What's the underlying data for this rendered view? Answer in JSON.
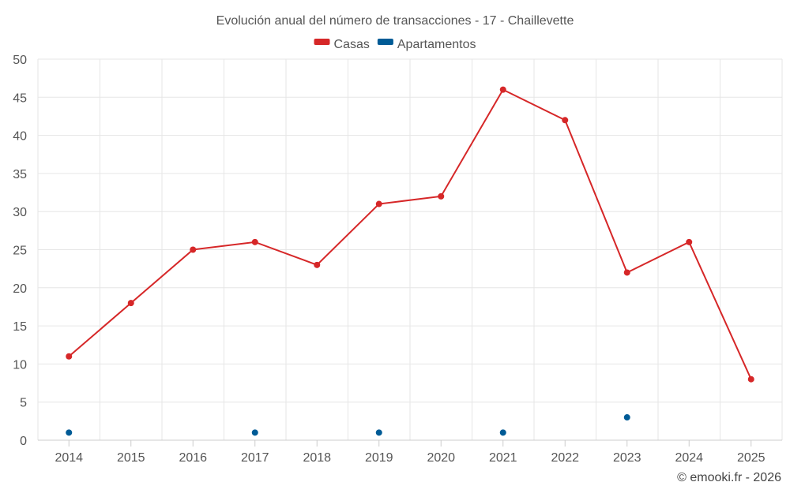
{
  "chart_data": {
    "type": "line",
    "title": "Evolución anual del número de transacciones - 17 - Chaillevette",
    "categories": [
      "2014",
      "2015",
      "2016",
      "2017",
      "2018",
      "2019",
      "2020",
      "2021",
      "2022",
      "2023",
      "2024",
      "2025"
    ],
    "series": [
      {
        "name": "Casas",
        "color": "#d62728",
        "mode": "line+markers",
        "values": [
          11,
          18,
          25,
          26,
          23,
          31,
          32,
          46,
          42,
          22,
          26,
          8
        ]
      },
      {
        "name": "Apartamentos",
        "color": "#005b96",
        "mode": "markers",
        "values": [
          1,
          null,
          null,
          1,
          null,
          1,
          null,
          1,
          null,
          3,
          null,
          null
        ]
      }
    ],
    "ylim": [
      0,
      50
    ],
    "yticks": [
      0,
      5,
      10,
      15,
      20,
      25,
      30,
      35,
      40,
      45,
      50
    ],
    "grid": true,
    "legend_position": "top-center"
  },
  "credit": "© emooki.fr - 2026"
}
